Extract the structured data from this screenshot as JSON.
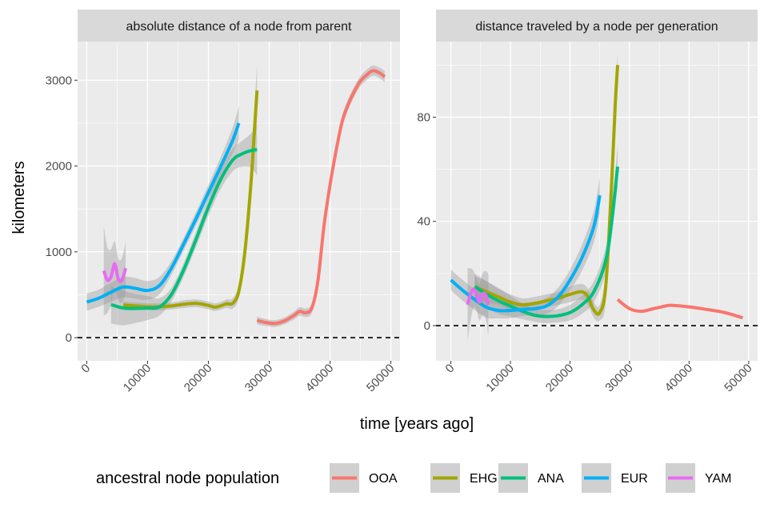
{
  "chart_data": {
    "type": "line",
    "xlabel": "time [years ago]",
    "ylabel": "kilometers",
    "x_ticks": [
      0,
      10000,
      20000,
      30000,
      40000,
      50000
    ],
    "legend": {
      "title": "ancestral node population",
      "placement": "bottom",
      "entries": [
        {
          "name": "OOA",
          "color": "#F8766D"
        },
        {
          "name": "EHG",
          "color": "#A3A500"
        },
        {
          "name": "ANA",
          "color": "#00BF7D"
        },
        {
          "name": "EUR",
          "color": "#00B0F6"
        },
        {
          "name": "YAM",
          "color": "#E76BF3"
        }
      ]
    },
    "panels": [
      {
        "title": "absolute distance of a node from parent",
        "xlim": [
          -1500,
          51500
        ],
        "ylim": [
          -270,
          3450
        ],
        "y_ticks": [
          0,
          1000,
          2000,
          3000
        ],
        "reference_line_y": 0,
        "series": [
          {
            "name": "OOA",
            "x": [
              28000,
              29500,
              31000,
              32500,
              34000,
              35000,
              36000,
              37000,
              38000,
              39000,
              40000,
              41000,
              42000,
              43000,
              44000,
              45000,
              46000,
              47000,
              48000,
              49000
            ],
            "y": [
              200,
              175,
              165,
              195,
              255,
              305,
              290,
              345,
              660,
              1300,
              1780,
              2180,
              2520,
              2720,
              2870,
              2990,
              3060,
              3110,
              3090,
              3040
            ],
            "se": [
              45,
              40,
              40,
              40,
              45,
              50,
              50,
              55,
              70,
              85,
              80,
              75,
              70,
              65,
              60,
              60,
              60,
              60,
              60,
              65
            ]
          },
          {
            "name": "EHG",
            "x": [
              6000,
              8000,
              10000,
              12000,
              14000,
              16000,
              18000,
              20000,
              21000,
              22000,
              23000,
              24000,
              25000,
              26000,
              27000,
              27600,
              28000
            ],
            "y": [
              380,
              370,
              360,
              360,
              370,
              390,
              400,
              375,
              355,
              370,
              395,
              400,
              540,
              1000,
              1800,
              2450,
              2880
            ],
            "se": [
              40,
              40,
              40,
              40,
              40,
              45,
              45,
              45,
              45,
              45,
              50,
              60,
              80,
              120,
              180,
              260,
              300
            ]
          },
          {
            "name": "ANA",
            "x": [
              4000,
              6000,
              8000,
              10000,
              12000,
              14000,
              16000,
              18000,
              20000,
              22000,
              24000,
              25500,
              27000,
              28000
            ],
            "y": [
              385,
              345,
              340,
              345,
              360,
              510,
              800,
              1150,
              1520,
              1840,
              2070,
              2140,
              2180,
              2190
            ],
            "se": [
              220,
              200,
              170,
              140,
              100,
              80,
              80,
              90,
              100,
              110,
              130,
              150,
              200,
              300
            ]
          },
          {
            "name": "EUR",
            "x": [
              0,
              2000,
              4000,
              6000,
              8000,
              10000,
              12000,
              14000,
              16000,
              18000,
              20000,
              22000,
              24000,
              25000
            ],
            "y": [
              415,
              460,
              530,
              590,
              575,
              550,
              610,
              820,
              1100,
              1390,
              1690,
              1990,
              2300,
              2500
            ],
            "se": [
              100,
              100,
              110,
              120,
              120,
              110,
              100,
              80,
              75,
              80,
              90,
              110,
              150,
              200
            ]
          },
          {
            "name": "YAM",
            "x": [
              2800,
              3400,
              4000,
              4600,
              5200,
              5800,
              6400
            ],
            "y": [
              780,
              670,
              710,
              860,
              680,
              670,
              810
            ],
            "se": [
              520,
              380,
              320,
              260,
              240,
              260,
              300
            ]
          }
        ]
      },
      {
        "title": "distance traveled by a node per generation",
        "xlim": [
          -2500,
          51500
        ],
        "ylim": [
          -13.5,
          109
        ],
        "y_ticks": [
          0,
          40,
          80
        ],
        "reference_line_y": 0,
        "series": [
          {
            "name": "OOA",
            "x": [
              28000,
              30000,
              32000,
              34000,
              36000,
              37000,
              40000,
              43000,
              46000,
              49000
            ],
            "y": [
              10,
              6.5,
              5.5,
              6.5,
              7.5,
              7.8,
              7.2,
              6.2,
              5,
              3
            ],
            "se": [
              0,
              0,
              0,
              0,
              0,
              0,
              0,
              0,
              0,
              0
            ]
          },
          {
            "name": "EHG",
            "x": [
              4000,
              6000,
              8000,
              10000,
              12000,
              14000,
              16000,
              18000,
              20000,
              22000,
              23000,
              24000,
              25000,
              26000,
              27000,
              27600,
              28000
            ],
            "y": [
              15,
              13,
              11,
              9,
              8,
              8.5,
              9.5,
              10.5,
              12,
              13,
              11,
              6,
              5,
              15,
              55,
              85,
              100
            ],
            "se": [
              4,
              4,
              3,
              3,
              2.5,
              2.5,
              2.5,
              2.5,
              3,
              3,
              3,
              3,
              3,
              6,
              8,
              6,
              4
            ]
          },
          {
            "name": "ANA",
            "x": [
              4000,
              6000,
              8000,
              10000,
              12000,
              14000,
              16000,
              18000,
              20000,
              22000,
              24000,
              26000,
              27000,
              28000
            ],
            "y": [
              15,
              12,
              9.5,
              7.5,
              5.5,
              4,
              3.5,
              3.8,
              5,
              8,
              13,
              25,
              40,
              61
            ],
            "se": [
              5,
              5,
              5,
              4,
              3,
              2.5,
              2.5,
              2.5,
              3,
              3.5,
              4,
              5,
              6,
              8
            ]
          },
          {
            "name": "EUR",
            "x": [
              0,
              2000,
              4000,
              6000,
              8000,
              10000,
              12000,
              14000,
              16000,
              18000,
              20000,
              22000,
              24000,
              25000
            ],
            "y": [
              17.5,
              13.5,
              10,
              7,
              5.8,
              5.8,
              6.2,
              6.5,
              7.5,
              11,
              17.5,
              26,
              38,
              50
            ],
            "se": [
              4,
              4,
              4,
              4,
              3,
              3,
              2.5,
              2.5,
              3,
              3.5,
              4,
              5,
              6,
              7
            ]
          },
          {
            "name": "YAM",
            "x": [
              2800,
              3300,
              3800,
              4300,
              4800,
              5300,
              5800,
              6300
            ],
            "y": [
              8,
              12,
              14,
              12,
              9,
              12,
              12,
              8
            ],
            "se": [
              14,
              10,
              7,
              6,
              7,
              8,
              9,
              12
            ]
          }
        ]
      }
    ]
  }
}
